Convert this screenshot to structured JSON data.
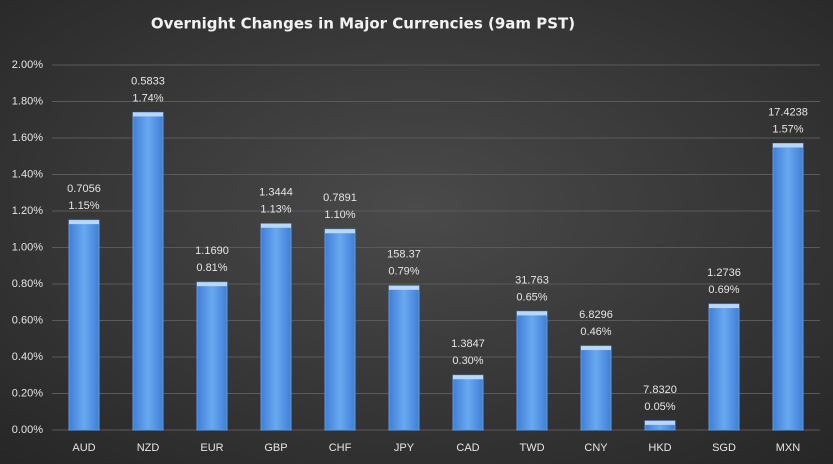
{
  "chart_data": {
    "type": "bar",
    "title": "Overnight Changes in Major Currencies (9am PST)",
    "categories": [
      "AUD",
      "NZD",
      "EUR",
      "GBP",
      "CHF",
      "JPY",
      "CAD",
      "TWD",
      "CNY",
      "HKD",
      "SGD",
      "MXN"
    ],
    "values": [
      1.15,
      1.74,
      0.81,
      1.13,
      1.1,
      0.79,
      0.3,
      0.65,
      0.46,
      0.05,
      0.69,
      1.57
    ],
    "value_labels": [
      "1.15%",
      "1.74%",
      "0.81%",
      "1.13%",
      "1.10%",
      "0.79%",
      "0.30%",
      "0.65%",
      "0.46%",
      "0.05%",
      "0.69%",
      "1.57%"
    ],
    "rates": [
      "0.7056",
      "0.5833",
      "1.1690",
      "1.3444",
      "0.7891",
      "158.37",
      "1.3847",
      "31.763",
      "6.8296",
      "7.8320",
      "1.2736",
      "17.4238"
    ],
    "color": "#5b9be8",
    "ylim": [
      0,
      2
    ],
    "yticks": [
      {
        "value": 0,
        "label": "0.00%"
      },
      {
        "value": 0.2,
        "label": "0.20%"
      },
      {
        "value": 0.4,
        "label": "0.40%"
      },
      {
        "value": 0.6,
        "label": "0.60%"
      },
      {
        "value": 0.8,
        "label": "0.80%"
      },
      {
        "value": 1.0,
        "label": "1.00%"
      },
      {
        "value": 1.2,
        "label": "1.20%"
      },
      {
        "value": 1.4,
        "label": "1.40%"
      },
      {
        "value": 1.6,
        "label": "1.60%"
      },
      {
        "value": 1.8,
        "label": "1.80%"
      },
      {
        "value": 2.0,
        "label": "2.00%"
      }
    ],
    "grid": true
  }
}
